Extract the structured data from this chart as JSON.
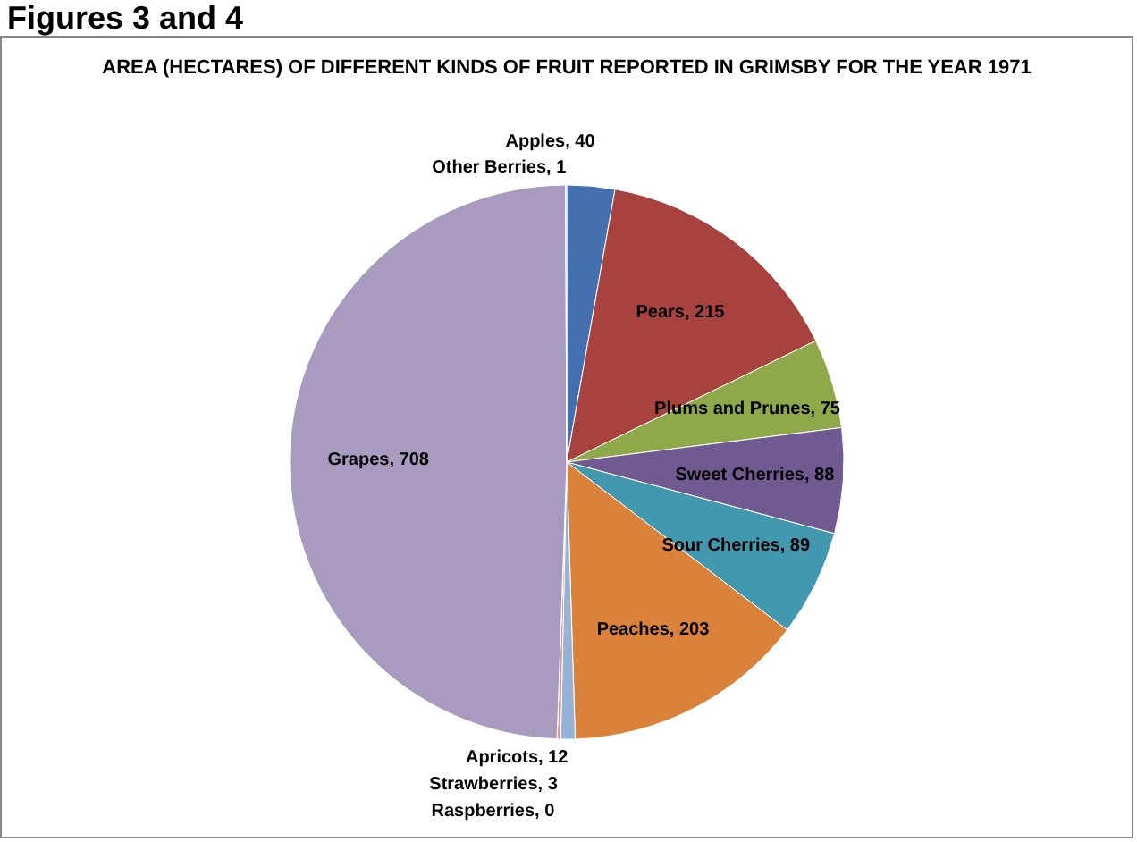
{
  "chart_data": {
    "type": "pie",
    "title": "AREA (HECTARES) OF DIFFERENT KINDS OF FRUIT REPORTED IN GRIMSBY FOR THE YEAR 1971",
    "annotations": [
      "Figures 3 and 4"
    ],
    "categories": [
      "Apples",
      "Pears",
      "Plums and Prunes",
      "Sweet Cherries",
      "Sour Cherries",
      "Peaches",
      "Apricots",
      "Strawberries",
      "Raspberries",
      "Grapes",
      "Other Berries"
    ],
    "values": [
      40,
      215,
      75,
      88,
      89,
      203,
      12,
      3,
      0,
      708,
      1
    ],
    "value_labels": [
      ", 40",
      ", 215",
      ", 75",
      ", 88",
      ", 89",
      ", 203",
      ", 12",
      ", 3",
      ", 0",
      ", 708",
      ", 1"
    ],
    "colors": [
      "#4470b0",
      "#a8423f",
      "#8ea84a",
      "#715a91",
      "#4298ae",
      "#db823a",
      "#95b3d7",
      "#d99694",
      "#c3d69b",
      "#a99bc0",
      "#93cddd"
    ]
  }
}
